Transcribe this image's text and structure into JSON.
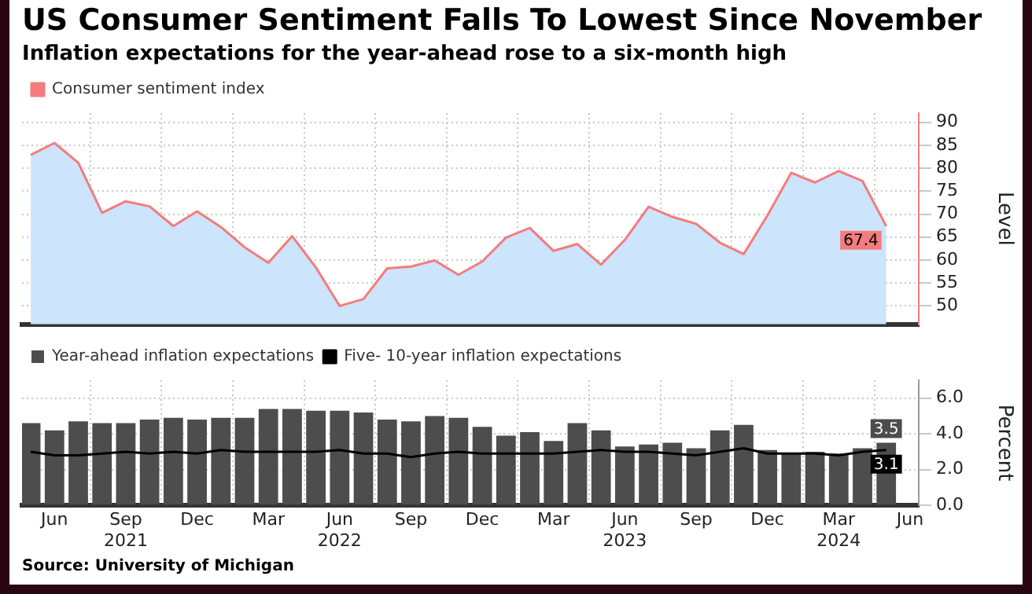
{
  "chart_data": [
    {
      "type": "area",
      "title": "US Consumer Sentiment Falls To Lowest Since November",
      "subtitle": "Inflation expectations for the year-ahead rose to a six-month high",
      "ylabel": "Level",
      "x": [
        "2021-05",
        "2021-06",
        "2021-07",
        "2021-08",
        "2021-09",
        "2021-10",
        "2021-11",
        "2021-12",
        "2022-01",
        "2022-02",
        "2022-03",
        "2022-04",
        "2022-05",
        "2022-06",
        "2022-07",
        "2022-08",
        "2022-09",
        "2022-10",
        "2022-11",
        "2022-12",
        "2023-01",
        "2023-02",
        "2023-03",
        "2023-04",
        "2023-05",
        "2023-06",
        "2023-07",
        "2023-08",
        "2023-09",
        "2023-10",
        "2023-11",
        "2023-12",
        "2024-01",
        "2024-02",
        "2024-03",
        "2024-04",
        "2024-05"
      ],
      "series": [
        {
          "color": "#cce4fc",
          "values": [
            82.9,
            85.5,
            81.2,
            70.3,
            72.8,
            71.7,
            67.4,
            70.6,
            67.2,
            62.8,
            59.4,
            65.2,
            58.4,
            50.0,
            51.5,
            58.2,
            58.6,
            59.9,
            56.8,
            59.7,
            64.9,
            67.0,
            62.0,
            63.5,
            59.0,
            64.4,
            71.6,
            69.4,
            67.9,
            63.8,
            61.3,
            69.7,
            79.0,
            76.9,
            79.4,
            77.2,
            67.4
          ]
        },
        {
          "name": "Consumer sentiment index",
          "type": "line",
          "color": "#f47c7c",
          "values": [
            82.9,
            85.5,
            81.2,
            70.3,
            72.8,
            71.7,
            67.4,
            70.6,
            67.2,
            62.8,
            59.4,
            65.2,
            58.4,
            50.0,
            51.5,
            58.2,
            58.6,
            59.9,
            56.8,
            59.7,
            64.9,
            67.0,
            62.0,
            63.5,
            59.0,
            64.4,
            71.6,
            69.4,
            67.9,
            63.8,
            61.3,
            69.7,
            79.0,
            76.9,
            79.4,
            77.2,
            67.4
          ],
          "value_labels": [
            null,
            null,
            null,
            null,
            null,
            null,
            null,
            null,
            null,
            null,
            null,
            null,
            null,
            null,
            null,
            null,
            null,
            null,
            null,
            null,
            null,
            null,
            null,
            null,
            null,
            null,
            null,
            null,
            null,
            null,
            null,
            null,
            null,
            null,
            null,
            null,
            "67.4"
          ]
        }
      ],
      "xlim": [
        "2021-04-20",
        "2024-06-12"
      ],
      "xticks": [
        {
          "value": "2021-06",
          "label": null
        },
        {
          "value": "2021-09",
          "label": null
        },
        {
          "value": "2021-12",
          "label": null
        },
        {
          "value": "2022-03",
          "label": null
        },
        {
          "value": "2022-06",
          "label": null
        },
        {
          "value": "2022-09",
          "label": null
        },
        {
          "value": "2022-12",
          "label": null
        },
        {
          "value": "2023-03",
          "label": null
        },
        {
          "value": "2023-06",
          "label": null
        },
        {
          "value": "2023-09",
          "label": null
        },
        {
          "value": "2023-12",
          "label": null
        },
        {
          "value": "2024-03",
          "label": null
        },
        {
          "value": "2024-06",
          "label": null
        }
      ],
      "ylim": [
        46,
        92
      ],
      "yticks": [
        50,
        55,
        60,
        65,
        70,
        75,
        80,
        85,
        90
      ],
      "grid": true,
      "legend": "top left",
      "marker": "none",
      "tick_labels": "y"
    },
    {
      "type": "bar",
      "ylabel": "Percent",
      "x": [
        "2021-05",
        "2021-06",
        "2021-07",
        "2021-08",
        "2021-09",
        "2021-10",
        "2021-11",
        "2021-12",
        "2022-01",
        "2022-02",
        "2022-03",
        "2022-04",
        "2022-05",
        "2022-06",
        "2022-07",
        "2022-08",
        "2022-09",
        "2022-10",
        "2022-11",
        "2022-12",
        "2023-01",
        "2023-02",
        "2023-03",
        "2023-04",
        "2023-05",
        "2023-06",
        "2023-07",
        "2023-08",
        "2023-09",
        "2023-10",
        "2023-11",
        "2023-12",
        "2024-01",
        "2024-02",
        "2024-03",
        "2024-04",
        "2024-05"
      ],
      "series": [
        {
          "name": "Year-ahead inflation expectations",
          "color": "#4d4d4d",
          "values": [
            4.6,
            4.2,
            4.7,
            4.6,
            4.6,
            4.8,
            4.9,
            4.8,
            4.9,
            4.9,
            5.4,
            5.4,
            5.3,
            5.3,
            5.2,
            4.8,
            4.7,
            5.0,
            4.9,
            4.4,
            3.9,
            4.1,
            3.6,
            4.6,
            4.2,
            3.3,
            3.4,
            3.5,
            3.2,
            4.2,
            4.5,
            3.1,
            2.9,
            3.0,
            2.9,
            3.2,
            3.5
          ],
          "value_labels": [
            null,
            null,
            null,
            null,
            null,
            null,
            null,
            null,
            null,
            null,
            null,
            null,
            null,
            null,
            null,
            null,
            null,
            null,
            null,
            null,
            null,
            null,
            null,
            null,
            null,
            null,
            null,
            null,
            null,
            null,
            null,
            null,
            null,
            null,
            null,
            null,
            "3.5"
          ]
        },
        {
          "name": "Five- 10-year inflation expectations",
          "type": "line",
          "color": "#000000",
          "values": [
            3.0,
            2.8,
            2.8,
            2.9,
            3.0,
            2.9,
            3.0,
            2.9,
            3.1,
            3.0,
            3.0,
            3.0,
            3.0,
            3.1,
            2.9,
            2.9,
            2.7,
            2.9,
            3.0,
            2.9,
            2.9,
            2.9,
            2.9,
            3.0,
            3.1,
            3.0,
            3.0,
            2.9,
            2.8,
            3.0,
            3.2,
            2.9,
            2.9,
            2.9,
            2.8,
            3.0,
            3.1
          ],
          "value_labels": [
            null,
            null,
            null,
            null,
            null,
            null,
            null,
            null,
            null,
            null,
            null,
            null,
            null,
            null,
            null,
            null,
            null,
            null,
            null,
            null,
            null,
            null,
            null,
            null,
            null,
            null,
            null,
            null,
            null,
            null,
            null,
            null,
            null,
            null,
            null,
            null,
            "3.1"
          ]
        }
      ],
      "xlim": [
        "2021-04-20",
        "2024-06-12"
      ],
      "xticks": [
        {
          "value": "2021-06",
          "label": "Jun"
        },
        {
          "value": "2021-09",
          "label": "Sep\n2021"
        },
        {
          "value": "2021-12",
          "label": "Dec"
        },
        {
          "value": "2022-03",
          "label": "Mar"
        },
        {
          "value": "2022-06",
          "label": "Jun\n2022"
        },
        {
          "value": "2022-09",
          "label": "Sep"
        },
        {
          "value": "2022-12",
          "label": "Dec"
        },
        {
          "value": "2023-03",
          "label": "Mar"
        },
        {
          "value": "2023-06",
          "label": "Jun\n2023"
        },
        {
          "value": "2023-09",
          "label": "Sep"
        },
        {
          "value": "2023-12",
          "label": "Dec"
        },
        {
          "value": "2024-03",
          "label": "Mar\n2024"
        },
        {
          "value": "2024-06",
          "label": "Jun"
        }
      ],
      "ylim": [
        0,
        7
      ],
      "yticks": [
        {
          "value": 0,
          "label": "0.0"
        },
        {
          "value": 2,
          "label": "2.0"
        },
        {
          "value": 4,
          "label": "4.0"
        },
        {
          "value": 6,
          "label": "6.0"
        }
      ],
      "grid": true,
      "legend": "top left",
      "marker": "none",
      "annotations": [
        "Source: University of Michigan"
      ]
    }
  ]
}
